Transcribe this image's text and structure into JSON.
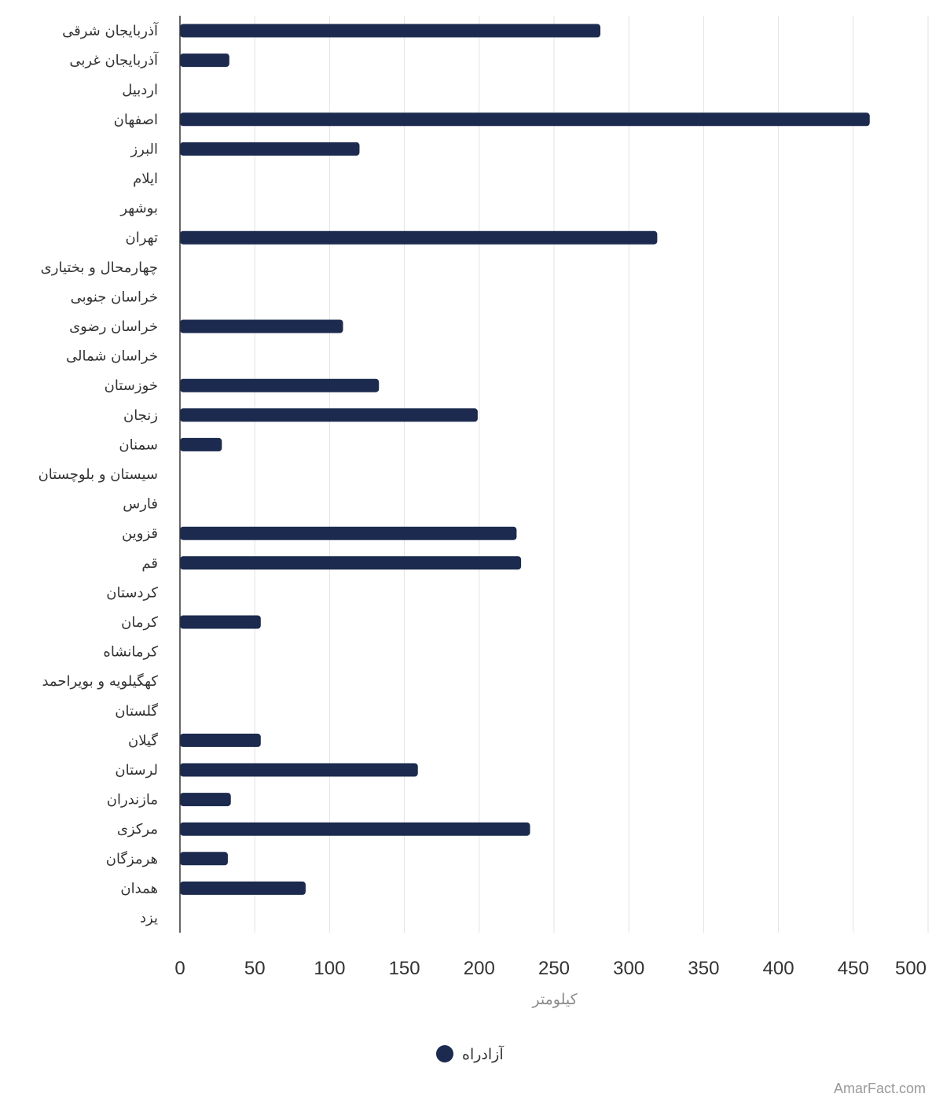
{
  "chart_data": {
    "type": "bar",
    "orientation": "horizontal",
    "categories": [
      "آذربایجان شرقی",
      "آذربایجان غربی",
      "اردبیل",
      "اصفهان",
      "البرز",
      "ایلام",
      "بوشهر",
      "تهران",
      "چهارمحال و بختیاری",
      "خراسان جنوبی",
      "خراسان رضوی",
      "خراسان شمالی",
      "خوزستان",
      "زنجان",
      "سمنان",
      "سیستان و بلوچستان",
      "فارس",
      "قزوین",
      "قم",
      "کردستان",
      "کرمان",
      "کرمانشاه",
      "کهگیلویه و بویراحمد",
      "گلستان",
      "گیلان",
      "لرستان",
      "مازندران",
      "مرکزی",
      "هرمزگان",
      "همدان",
      "یزد"
    ],
    "series": [
      {
        "name": "آزادراه",
        "color": "#1b2a4e",
        "values": [
          281,
          33,
          0,
          461,
          120,
          0,
          0,
          319,
          0,
          0,
          109,
          0,
          133,
          199,
          28,
          0,
          0,
          225,
          228,
          0,
          54,
          0,
          0,
          0,
          54,
          159,
          34,
          234,
          32,
          84,
          0
        ]
      }
    ],
    "xlabel": "کیلومتر",
    "ylabel": "",
    "xlim": [
      0,
      500
    ],
    "xticks": [
      0,
      50,
      100,
      150,
      200,
      250,
      300,
      350,
      400,
      450,
      500
    ],
    "grid": true,
    "legend_position": "bottom-center"
  },
  "credit": "AmarFact.com"
}
